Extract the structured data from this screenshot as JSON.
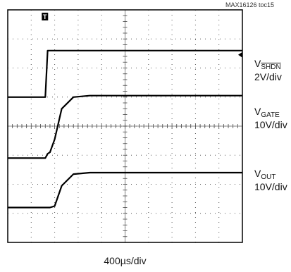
{
  "chart_data": {
    "type": "line",
    "title": "",
    "figure_id": "MAX16126 toc15",
    "time_scale": "400µs/div",
    "grid": true,
    "divisions": {
      "x": 10,
      "y": 8
    },
    "trigger_marker": "T",
    "time_divs": [
      0,
      0.2,
      0.5,
      1.0,
      1.6,
      1.7,
      1.8,
      2.0,
      2.3,
      2.8,
      3.5,
      5.0,
      7.5,
      10.0
    ],
    "series": [
      {
        "name": "VSHDN",
        "label_main": "V",
        "label_sub": "SHDN",
        "scale": "2V/div",
        "color": "#000000",
        "y_divs": [
          5.0,
          5.0,
          5.0,
          5.0,
          5.0,
          6.6,
          6.6,
          6.6,
          6.6,
          6.6,
          6.6,
          6.6,
          6.6,
          6.6
        ]
      },
      {
        "name": "VGATE",
        "label_main": "V",
        "label_sub": "GATE",
        "scale": "10V/div",
        "color": "#000000",
        "y_divs": [
          2.9,
          2.9,
          2.9,
          2.9,
          2.9,
          3.05,
          3.1,
          3.55,
          4.6,
          5.0,
          5.05,
          5.05,
          5.05,
          5.05
        ]
      },
      {
        "name": "VOUT",
        "label_main": "V",
        "label_sub": "OUT",
        "scale": "10V/div",
        "color": "#000000",
        "y_divs": [
          1.2,
          1.2,
          1.2,
          1.2,
          1.2,
          1.2,
          1.2,
          1.25,
          1.95,
          2.35,
          2.4,
          2.4,
          2.4,
          2.4
        ]
      }
    ]
  }
}
